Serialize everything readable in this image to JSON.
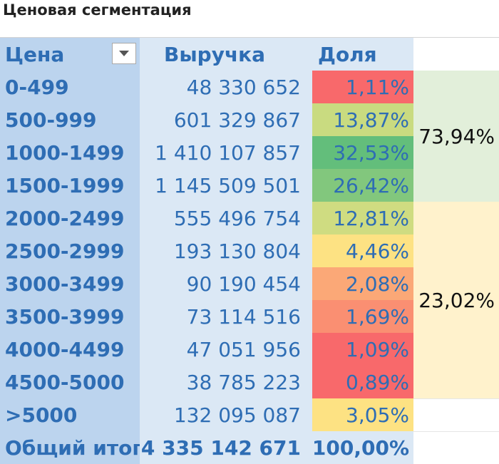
{
  "title": "Ценовая сегментация",
  "header": {
    "price": "Цена",
    "revenue": "Выручка",
    "share": "Доля"
  },
  "rows": [
    {
      "price": "0-499",
      "revenue": "48 330 652",
      "share": "1,11%",
      "color": "#f8696b"
    },
    {
      "price": "500-999",
      "revenue": "601 329 867",
      "share": "13,87%",
      "color": "#c9db80"
    },
    {
      "price": "1000-1499",
      "revenue": "1 410 107 857",
      "share": "32,53%",
      "color": "#63be7b"
    },
    {
      "price": "1500-1999",
      "revenue": "1 145 509 501",
      "share": "26,42%",
      "color": "#82c77d"
    },
    {
      "price": "2000-2499",
      "revenue": "555 496 754",
      "share": "12,81%",
      "color": "#cfdc81"
    },
    {
      "price": "2500-2999",
      "revenue": "193 130 804",
      "share": "4,46%",
      "color": "#fde283"
    },
    {
      "price": "3000-3499",
      "revenue": "90 190 454",
      "share": "2,08%",
      "color": "#fba877"
    },
    {
      "price": "3500-3999",
      "revenue": "73 114 516",
      "share": "1,69%",
      "color": "#fa8f72"
    },
    {
      "price": "4000-4499",
      "revenue": "47 051 956",
      "share": "1,09%",
      "color": "#f8696b"
    },
    {
      "price": "4500-5000",
      "revenue": "38 785 223",
      "share": "0,89%",
      "color": "#f8696b"
    },
    {
      "price": ">5000",
      "revenue": "132 095 087",
      "share": "3,05%",
      "color": "#fde283"
    }
  ],
  "total": {
    "price": "Общий итог",
    "revenue": "4 335 142 671",
    "share": "100,00%"
  },
  "groups": {
    "a": "73,94%",
    "b": "23,02%"
  },
  "icons": {
    "filter": "chevron-down-icon"
  }
}
